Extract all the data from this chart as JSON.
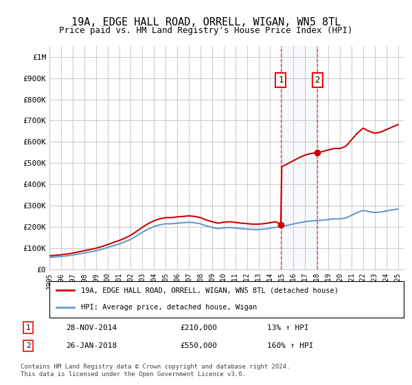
{
  "title": "19A, EDGE HALL ROAD, ORRELL, WIGAN, WN5 8TL",
  "subtitle": "Price paid vs. HM Land Registry's House Price Index (HPI)",
  "ylabel_ticks": [
    "£0",
    "£100K",
    "£200K",
    "£300K",
    "£400K",
    "£500K",
    "£600K",
    "£700K",
    "£800K",
    "£900K",
    "£1M"
  ],
  "ytick_values": [
    0,
    100000,
    200000,
    300000,
    400000,
    500000,
    600000,
    700000,
    800000,
    900000,
    1000000
  ],
  "ylim": [
    0,
    1050000
  ],
  "xlim_start": 1995.0,
  "xlim_end": 2025.5,
  "hpi_color": "#6699cc",
  "price_color": "#cc0000",
  "sale1_date": 2014.91,
  "sale1_price": 210000,
  "sale2_date": 2018.07,
  "sale2_price": 550000,
  "sale1_label": "1",
  "sale2_label": "2",
  "sale1_info": "28-NOV-2014    £210,000    13% ↑ HPI",
  "sale2_info": "26-JAN-2018    £550,000    160% ↑ HPI",
  "legend_property": "19A, EDGE HALL ROAD, ORRELL, WIGAN, WN5 8TL (detached house)",
  "legend_hpi": "HPI: Average price, detached house, Wigan",
  "footnote": "Contains HM Land Registry data © Crown copyright and database right 2024.\nThis data is licensed under the Open Government Licence v3.0.",
  "background_color": "#ffffff",
  "grid_color": "#cccccc"
}
